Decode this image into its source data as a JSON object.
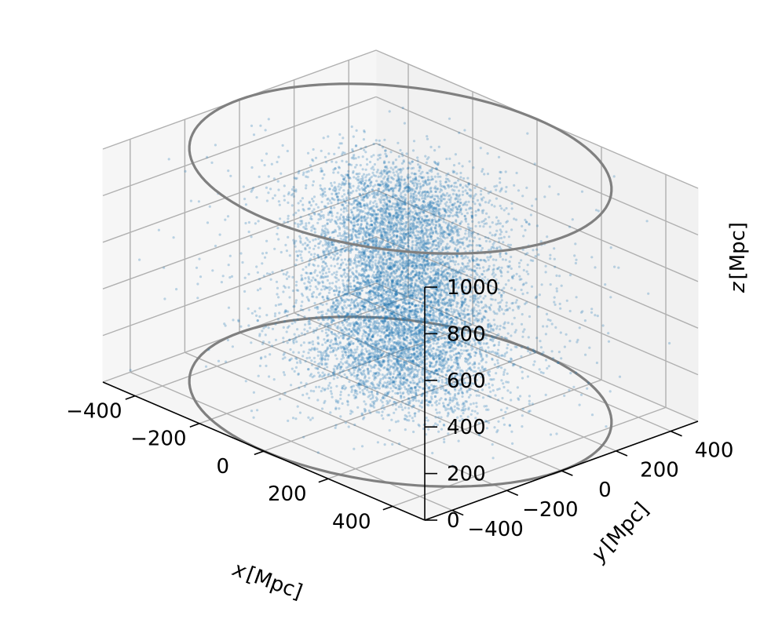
{
  "chart_data": {
    "type": "scatter",
    "projection": "3d",
    "title": "",
    "xlabel": "x [Mpc]",
    "ylabel": "y [Mpc]",
    "zlabel": "z [Mpc]",
    "x_label": {
      "var": "x",
      "unit": "[Mpc]"
    },
    "y_label": {
      "var": "y",
      "unit": "[Mpc]"
    },
    "z_label": {
      "var": "z",
      "unit": "[Mpc]"
    },
    "xlim": [
      -500,
      500
    ],
    "ylim": [
      -500,
      500
    ],
    "zlim": [
      0,
      1000
    ],
    "x_ticks": [
      "−400",
      "−200",
      "0",
      "200",
      "400"
    ],
    "y_ticks": [
      "−400",
      "−200",
      "0",
      "200",
      "400"
    ],
    "z_ticks": [
      "0",
      "200",
      "400",
      "600",
      "800",
      "1000"
    ],
    "x_tick_values": [
      -400,
      -200,
      0,
      200,
      400
    ],
    "y_tick_values": [
      -400,
      -200,
      0,
      200,
      400
    ],
    "z_tick_values": [
      0,
      200,
      400,
      600,
      800,
      1000
    ],
    "grid": true,
    "point_color": "#1f77b4",
    "circle_color": "#808080",
    "circles": [
      {
        "center": [
          0,
          0
        ],
        "radius": 500,
        "z": 0
      },
      {
        "center": [
          0,
          0
        ],
        "radius": 500,
        "z": 1000
      }
    ],
    "point_distribution": {
      "points_shown": 9000,
      "clusters": [
        {
          "center": [
            0,
            0,
            780
          ],
          "spread": [
            110,
            110,
            150
          ],
          "weight": 0.3
        },
        {
          "center": [
            0,
            20,
            450
          ],
          "spread": [
            100,
            100,
            140
          ],
          "weight": 0.25
        },
        {
          "center": [
            20,
            -20,
            200
          ],
          "spread": [
            120,
            120,
            110
          ],
          "weight": 0.25
        },
        {
          "center": [
            0,
            0,
            500
          ],
          "spread": [
            240,
            240,
            300
          ],
          "weight": 0.2
        }
      ]
    }
  }
}
